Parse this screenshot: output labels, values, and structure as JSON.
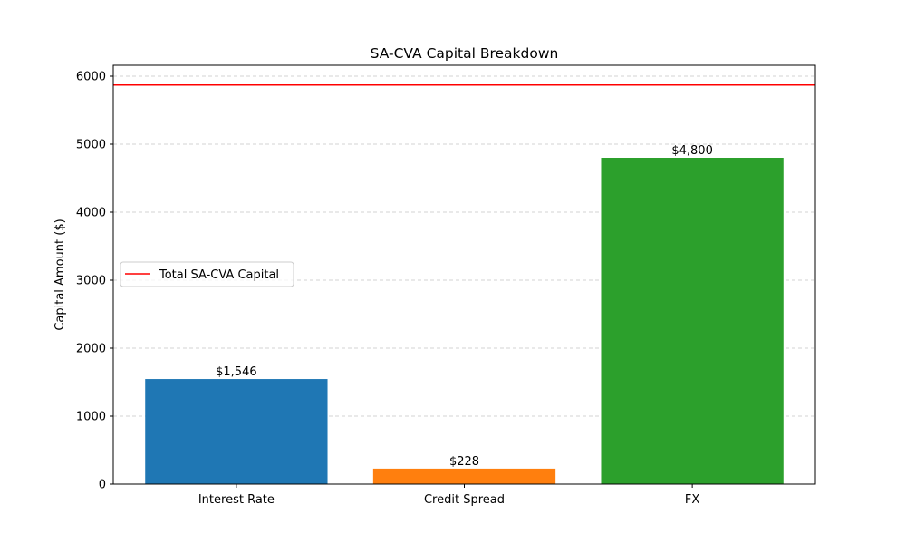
{
  "chart_data": {
    "type": "bar",
    "title": "SA-CVA Capital Breakdown",
    "xlabel": "",
    "ylabel": "Capital Amount ($)",
    "categories": [
      "Interest Rate",
      "Credit Spread",
      "FX"
    ],
    "values": [
      1546,
      228,
      4800
    ],
    "bar_labels": [
      "$1,546",
      "$228",
      "$4,800"
    ],
    "colors": [
      "#1f77b4",
      "#ff7f0e",
      "#2ca02c"
    ],
    "ylim": [
      0,
      6160
    ],
    "yticks": [
      0,
      1000,
      2000,
      3000,
      4000,
      5000,
      6000
    ],
    "ytick_labels": [
      "0",
      "1000",
      "2000",
      "3000",
      "4000",
      "5000",
      "6000"
    ],
    "grid": "y-dashed",
    "hline": {
      "value": 5870,
      "color": "#ff0000",
      "name": "Total SA-CVA Capital"
    },
    "legend": {
      "placement": "center-left",
      "entries": [
        "Total SA-CVA Capital"
      ]
    }
  }
}
